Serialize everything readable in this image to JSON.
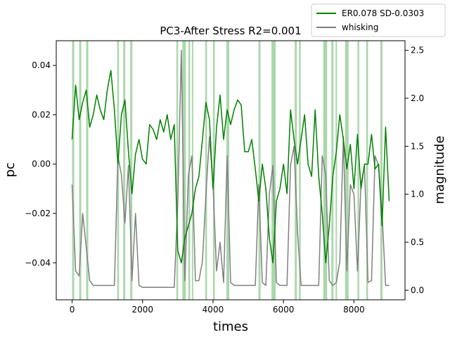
{
  "chart_data": {
    "type": "line",
    "title": "PC3-After Stress R2=0.001",
    "xlabel": "times",
    "ylabel_left": "pc",
    "ylabel_right": "magnitude",
    "xlim": [
      -450,
      9450
    ],
    "ylim_left": [
      -0.055,
      0.05
    ],
    "ylim_right": [
      -0.1,
      2.6
    ],
    "x_ticks": [
      0,
      2000,
      4000,
      6000,
      8000
    ],
    "y_left_ticks": [
      -0.04,
      -0.02,
      0.0,
      0.02,
      0.04
    ],
    "y_left_tick_labels": [
      "−0.04",
      "−0.02",
      "0.00",
      "0.02",
      "0.04"
    ],
    "y_right_ticks": [
      0.0,
      0.5,
      1.0,
      1.5,
      2.0,
      2.5
    ],
    "y_right_tick_labels": [
      "0.0",
      "0.5",
      "1.0",
      "1.5",
      "2.0",
      "2.5"
    ],
    "legend_position": "top-right",
    "grid": false,
    "series": [
      {
        "name": "ER0.078 SD-0.0303",
        "axis": "left",
        "color": "#008000",
        "x": [
          0,
          100,
          200,
          300,
          400,
          500,
          600,
          700,
          800,
          900,
          1000,
          1100,
          1200,
          1300,
          1400,
          1500,
          1600,
          1700,
          1800,
          1900,
          2000,
          2100,
          2200,
          2300,
          2400,
          2500,
          2600,
          2700,
          2800,
          2900,
          3000,
          3100,
          3200,
          3300,
          3400,
          3500,
          3600,
          3700,
          3800,
          3900,
          4000,
          4100,
          4200,
          4300,
          4400,
          4500,
          4600,
          4700,
          4800,
          4900,
          5000,
          5100,
          5200,
          5300,
          5400,
          5500,
          5600,
          5700,
          5800,
          5900,
          6000,
          6100,
          6200,
          6300,
          6400,
          6500,
          6600,
          6700,
          6800,
          6900,
          7000,
          7100,
          7200,
          7300,
          7400,
          7500,
          7600,
          7700,
          7800,
          7900,
          8000,
          8100,
          8200,
          8300,
          8400,
          8500,
          8600,
          8700,
          8800,
          8900,
          9000
        ],
        "y": [
          0.01,
          0.032,
          0.018,
          0.025,
          0.03,
          0.015,
          0.02,
          0.028,
          0.022,
          0.018,
          0.03,
          0.038,
          0.022,
          0.0,
          0.02,
          0.026,
          0.005,
          -0.012,
          0.004,
          0.01,
          0.002,
          0.0,
          0.016,
          0.014,
          0.01,
          0.018,
          0.013,
          0.02,
          0.01,
          0.016,
          -0.035,
          -0.04,
          -0.03,
          -0.025,
          -0.02,
          -0.01,
          -0.005,
          0.01,
          0.025,
          0.018,
          -0.01,
          0.015,
          0.028,
          0.01,
          0.022,
          0.016,
          0.022,
          0.026,
          0.024,
          0.005,
          0.005,
          0.01,
          -0.002,
          -0.015,
          0.0,
          -0.01,
          -0.03,
          -0.04,
          -0.015,
          -0.01,
          0.0,
          -0.012,
          0.022,
          0.01,
          0.0,
          0.01,
          0.02,
          0.0,
          -0.005,
          0.022,
          -0.005,
          -0.02,
          -0.04,
          -0.025,
          -0.005,
          0.005,
          0.02,
          0.01,
          -0.002,
          0.008,
          -0.01,
          0.012,
          -0.01,
          0.0,
          0.0,
          0.012,
          -0.002,
          0.0,
          -0.025,
          0.015,
          -0.015
        ]
      },
      {
        "name": "whisking",
        "axis": "right",
        "color": "#808080",
        "x": [
          0,
          100,
          200,
          300,
          400,
          500,
          600,
          700,
          800,
          900,
          1000,
          1100,
          1200,
          1300,
          1400,
          1500,
          1600,
          1700,
          1800,
          1900,
          2000,
          2100,
          2200,
          2300,
          2400,
          2500,
          2600,
          2700,
          2800,
          2900,
          3000,
          3100,
          3200,
          3300,
          3400,
          3500,
          3600,
          3700,
          3800,
          3900,
          4000,
          4100,
          4200,
          4300,
          4400,
          4500,
          4600,
          4700,
          4800,
          4900,
          5000,
          5100,
          5200,
          5300,
          5400,
          5500,
          5600,
          5700,
          5800,
          5900,
          6000,
          6100,
          6200,
          6300,
          6400,
          6500,
          6600,
          6700,
          6800,
          6900,
          7000,
          7100,
          7200,
          7300,
          7400,
          7500,
          7600,
          7700,
          7800,
          7900,
          8000,
          8100,
          8200,
          8300,
          8400,
          8500,
          8600,
          8700,
          8800,
          8900,
          9000
        ],
        "y": [
          1.1,
          0.2,
          0.15,
          0.8,
          0.45,
          0.1,
          0.05,
          0.05,
          0.05,
          0.05,
          0.05,
          0.05,
          0.05,
          1.4,
          1.2,
          0.7,
          1.3,
          0.1,
          0.8,
          0.05,
          0.03,
          0.03,
          0.03,
          0.03,
          0.03,
          0.03,
          0.03,
          0.03,
          0.03,
          0.03,
          0.9,
          2.5,
          0.1,
          1.2,
          1.4,
          0.1,
          0.1,
          0.3,
          1.0,
          1.6,
          1.1,
          0.2,
          0.5,
          0.08,
          1.4,
          0.08,
          0.05,
          0.05,
          0.05,
          0.05,
          0.05,
          0.05,
          0.05,
          1.1,
          0.08,
          0.05,
          1.0,
          1.3,
          0.08,
          0.05,
          0.05,
          0.05,
          1.3,
          1.5,
          0.6,
          0.05,
          0.05,
          0.05,
          0.05,
          0.05,
          0.05,
          1.4,
          1.2,
          0.1,
          0.05,
          0.08,
          0.3,
          1.6,
          0.2,
          1.1,
          1.0,
          0.2,
          1.1,
          1.3,
          0.08,
          0.1,
          1.4,
          1.3,
          0.8,
          0.05,
          0.05
        ]
      }
    ],
    "spans": [
      [
        0,
        60
      ],
      [
        200,
        260
      ],
      [
        400,
        460
      ],
      [
        1280,
        1330
      ],
      [
        1450,
        1510
      ],
      [
        1650,
        1710
      ],
      [
        2960,
        3010
      ],
      [
        3130,
        3230
      ],
      [
        3300,
        3350
      ],
      [
        3400,
        3440
      ],
      [
        3780,
        3830
      ],
      [
        4000,
        4050
      ],
      [
        4380,
        4460
      ],
      [
        5290,
        5350
      ],
      [
        5660,
        5780
      ],
      [
        6320,
        6380
      ],
      [
        6440,
        6490
      ],
      [
        7130,
        7240
      ],
      [
        7360,
        7420
      ],
      [
        7480,
        7520
      ],
      [
        7750,
        7850
      ],
      [
        8100,
        8150
      ],
      [
        8350,
        8400
      ],
      [
        8750,
        8810
      ]
    ],
    "span_color": "#8fc98f"
  }
}
